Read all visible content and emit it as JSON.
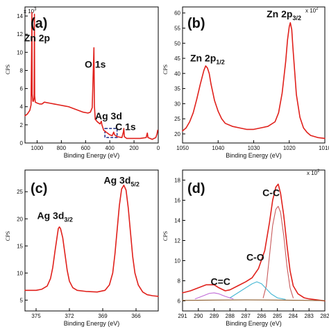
{
  "chart_data": [
    {
      "type": "line",
      "panel_label": "(a)",
      "xlabel": "Binding Energy (eV)",
      "ylabel": "CPS",
      "y_exponent": "x 10",
      "y_exponent_power": "3",
      "xlim": [
        1100,
        0
      ],
      "ylim": [
        0,
        15
      ],
      "xticks": [
        1000,
        800,
        600,
        400,
        200,
        0
      ],
      "yticks": [
        0,
        2,
        4,
        6,
        8,
        10,
        12,
        14
      ],
      "annotations": [
        {
          "text": "Zn 2p",
          "x": 1000,
          "y": 11.2
        },
        {
          "text": "O 1s",
          "x": 520,
          "y": 8.3
        },
        {
          "text": "Ag 3d",
          "x": 410,
          "y": 2.6
        },
        {
          "text": "C 1s",
          "x": 270,
          "y": 1.4
        }
      ],
      "highlight_box": {
        "x0": 440,
        "x1": 340,
        "y0": 0.6,
        "y1": 1.6
      },
      "series": [
        {
          "color": "#e0201b",
          "points": [
            [
              1100,
              3.0
            ],
            [
              1080,
              3.2
            ],
            [
              1060,
              3.6
            ],
            [
              1050,
              4.2
            ],
            [
              1045,
              10.8
            ],
            [
              1043,
              14.4
            ],
            [
              1041,
              5.4
            ],
            [
              1035,
              4.6
            ],
            [
              1030,
              4.6
            ],
            [
              1025,
              5.0
            ],
            [
              1022,
              14.2
            ],
            [
              1020,
              5.2
            ],
            [
              1015,
              4.5
            ],
            [
              1000,
              4.4
            ],
            [
              980,
              4.3
            ],
            [
              960,
              4.3
            ],
            [
              940,
              4.5
            ],
            [
              900,
              4.4
            ],
            [
              860,
              4.3
            ],
            [
              820,
              4.2
            ],
            [
              780,
              4.1
            ],
            [
              740,
              4.0
            ],
            [
              700,
              3.8
            ],
            [
              660,
              3.6
            ],
            [
              620,
              3.4
            ],
            [
              580,
              3.3
            ],
            [
              560,
              3.4
            ],
            [
              545,
              3.9
            ],
            [
              535,
              8.6
            ],
            [
              531,
              10.5
            ],
            [
              527,
              4.1
            ],
            [
              520,
              2.6
            ],
            [
              500,
              2.3
            ],
            [
              480,
              2.1
            ],
            [
              470,
              2.4
            ],
            [
              465,
              2.0
            ],
            [
              450,
              1.4
            ],
            [
              420,
              1.1
            ],
            [
              400,
              0.9
            ],
            [
              380,
              0.8
            ],
            [
              368,
              1.2
            ],
            [
              360,
              0.9
            ],
            [
              340,
              0.7
            ],
            [
              300,
              0.6
            ],
            [
              288,
              1.2
            ],
            [
              284,
              1.6
            ],
            [
              280,
              0.7
            ],
            [
              260,
              0.5
            ],
            [
              200,
              0.5
            ],
            [
              150,
              0.5
            ],
            [
              100,
              0.6
            ],
            [
              90,
              1.1
            ],
            [
              85,
              0.6
            ],
            [
              50,
              0.4
            ],
            [
              20,
              0.6
            ],
            [
              10,
              1.0
            ],
            [
              5,
              1.4
            ]
          ]
        }
      ]
    },
    {
      "type": "line",
      "panel_label": "(b)",
      "xlabel": "Binding Energy (eV)",
      "ylabel": "CPS",
      "y_exponent": "x 10",
      "y_exponent_power": "2",
      "xlim": [
        1050,
        1010
      ],
      "ylim": [
        17,
        62
      ],
      "xticks": [
        1050,
        1040,
        1030,
        1020,
        1010
      ],
      "yticks": [
        20,
        25,
        30,
        35,
        40,
        45,
        50,
        55,
        60
      ],
      "annotations": [
        {
          "text": "Zn 2p",
          "sub": "1/2",
          "x": 1043,
          "y": 44
        },
        {
          "text": "Zn 2p",
          "sub": "3/2",
          "x": 1021.5,
          "y": 58.5
        }
      ],
      "series": [
        {
          "color": "#e0201b",
          "points": [
            [
              1050,
              21.0
            ],
            [
              1049,
              22.0
            ],
            [
              1048,
              24.0
            ],
            [
              1047,
              27.0
            ],
            [
              1046,
              31.5
            ],
            [
              1045,
              36.5
            ],
            [
              1044,
              41.0
            ],
            [
              1043.5,
              42.5
            ],
            [
              1043,
              41.8
            ],
            [
              1042.5,
              40.0
            ],
            [
              1042,
              36.5
            ],
            [
              1041,
              31.0
            ],
            [
              1040,
              27.5
            ],
            [
              1039,
              25.0
            ],
            [
              1038,
              23.5
            ],
            [
              1036,
              22.5
            ],
            [
              1034,
              22.0
            ],
            [
              1032,
              21.5
            ],
            [
              1030,
              21.5
            ],
            [
              1028,
              22.0
            ],
            [
              1026,
              22.5
            ],
            [
              1024,
              24.0
            ],
            [
              1023,
              27.0
            ],
            [
              1022,
              33.5
            ],
            [
              1021,
              44.0
            ],
            [
              1020.5,
              51.0
            ],
            [
              1020,
              55.5
            ],
            [
              1019.7,
              56.8
            ],
            [
              1019.3,
              54.5
            ],
            [
              1019,
              49.0
            ],
            [
              1018.5,
              41.0
            ],
            [
              1018,
              33.0
            ],
            [
              1017,
              25.5
            ],
            [
              1016,
              22.0
            ],
            [
              1015,
              20.5
            ],
            [
              1014,
              19.5
            ],
            [
              1012,
              18.8
            ],
            [
              1010,
              18.5
            ]
          ]
        }
      ]
    },
    {
      "type": "line",
      "panel_label": "(c)",
      "xlabel": "Binding Energy (eV)",
      "ylabel": "CPS",
      "xlim": [
        376,
        364
      ],
      "ylim": [
        3,
        29
      ],
      "xticks": [
        375,
        372,
        369,
        366
      ],
      "yticks": [
        5,
        10,
        15,
        20,
        25
      ],
      "annotations": [
        {
          "text": "Ag 3d",
          "sub": "3/2",
          "x": 373.3,
          "y": 20
        },
        {
          "text": "Ag 3d",
          "sub": "5/2",
          "x": 367.3,
          "y": 26.5
        }
      ],
      "series": [
        {
          "color": "#e0201b",
          "points": [
            [
              376,
              6.8
            ],
            [
              375,
              6.8
            ],
            [
              374.5,
              7.0
            ],
            [
              374,
              7.6
            ],
            [
              373.7,
              9.0
            ],
            [
              373.5,
              11.0
            ],
            [
              373.3,
              14.0
            ],
            [
              373.1,
              16.8
            ],
            [
              373.0,
              18.2
            ],
            [
              372.9,
              18.5
            ],
            [
              372.8,
              18.2
            ],
            [
              372.6,
              16.5
            ],
            [
              372.4,
              13.5
            ],
            [
              372.2,
              10.5
            ],
            [
              372.0,
              8.5
            ],
            [
              371.7,
              7.3
            ],
            [
              371.3,
              6.8
            ],
            [
              370.5,
              6.6
            ],
            [
              369.5,
              6.5
            ],
            [
              368.8,
              6.8
            ],
            [
              368.4,
              7.8
            ],
            [
              368.1,
              10.0
            ],
            [
              367.9,
              13.5
            ],
            [
              367.7,
              18.0
            ],
            [
              367.5,
              22.5
            ],
            [
              367.3,
              25.5
            ],
            [
              367.1,
              26.2
            ],
            [
              366.9,
              25.3
            ],
            [
              366.7,
              22.0
            ],
            [
              366.5,
              17.5
            ],
            [
              366.3,
              13.0
            ],
            [
              366.1,
              10.0
            ],
            [
              365.8,
              7.8
            ],
            [
              365.4,
              6.5
            ],
            [
              365.0,
              6.0
            ],
            [
              364.5,
              5.8
            ],
            [
              364.0,
              5.7
            ]
          ]
        }
      ]
    },
    {
      "type": "line",
      "panel_label": "(d)",
      "xlabel": "Binding Energy (eV)",
      "ylabel": "CPS",
      "y_exponent": "x 10",
      "y_exponent_power": "2",
      "xlim": [
        291,
        282
      ],
      "ylim": [
        5,
        19
      ],
      "xticks": [
        291,
        290,
        289,
        288,
        287,
        286,
        285,
        284,
        283,
        282
      ],
      "yticks": [
        6,
        8,
        10,
        12,
        14,
        16,
        18
      ],
      "annotations": [
        {
          "text": "C=C",
          "x": 288.6,
          "y": 7.6
        },
        {
          "text": "C-O",
          "x": 286.4,
          "y": 10.0
        },
        {
          "text": "C-C",
          "x": 285.4,
          "y": 16.4
        }
      ],
      "series": [
        {
          "name": "",
          "color": "#e0201b",
          "points": [
            [
              291,
              6.8
            ],
            [
              290.5,
              7.0
            ],
            [
              290,
              7.3
            ],
            [
              289.5,
              7.6
            ],
            [
              289,
              7.6
            ],
            [
              288.7,
              7.3
            ],
            [
              288.3,
              7.0
            ],
            [
              288,
              7.1
            ],
            [
              287.5,
              7.5
            ],
            [
              287,
              7.9
            ],
            [
              286.6,
              8.3
            ],
            [
              286.2,
              9.2
            ],
            [
              285.8,
              11.0
            ],
            [
              285.5,
              13.8
            ],
            [
              285.3,
              16.0
            ],
            [
              285.1,
              17.3
            ],
            [
              284.95,
              17.6
            ],
            [
              284.8,
              16.7
            ],
            [
              284.6,
              14.5
            ],
            [
              284.4,
              11.6
            ],
            [
              284.2,
              9.0
            ],
            [
              284,
              7.5
            ],
            [
              283.7,
              6.7
            ],
            [
              283.3,
              6.3
            ],
            [
              283,
              6.2
            ],
            [
              282.5,
              6.1
            ],
            [
              282,
              6.0
            ]
          ]
        },
        {
          "name": "",
          "color": "#c8595a",
          "points": [
            [
              285.9,
              6.3
            ],
            [
              285.7,
              7.5
            ],
            [
              285.5,
              10.5
            ],
            [
              285.3,
              13.5
            ],
            [
              285.1,
              15.1
            ],
            [
              284.95,
              15.4
            ],
            [
              284.8,
              14.8
            ],
            [
              284.6,
              12.5
            ],
            [
              284.4,
              9.5
            ],
            [
              284.2,
              7.3
            ],
            [
              284.0,
              6.3
            ]
          ]
        },
        {
          "name": "",
          "color": "#45b7d4",
          "points": [
            [
              288,
              6.3
            ],
            [
              287.5,
              6.8
            ],
            [
              287,
              7.3
            ],
            [
              286.6,
              7.7
            ],
            [
              286.3,
              7.9
            ],
            [
              286.0,
              7.7
            ],
            [
              285.7,
              7.2
            ],
            [
              285.4,
              6.7
            ],
            [
              285,
              6.3
            ],
            [
              284.5,
              6.15
            ]
          ]
        },
        {
          "name": "",
          "color": "#c06ad8",
          "points": [
            [
              290.2,
              6.2
            ],
            [
              289.7,
              6.5
            ],
            [
              289.3,
              6.75
            ],
            [
              289.0,
              6.8
            ],
            [
              288.7,
              6.7
            ],
            [
              288.3,
              6.45
            ],
            [
              287.8,
              6.2
            ]
          ]
        },
        {
          "name": "",
          "color": "#8a5a2b",
          "points": [
            [
              291,
              6.05
            ],
            [
              289,
              6.08
            ],
            [
              287,
              6.1
            ],
            [
              285,
              6.08
            ],
            [
              283,
              6.05
            ],
            [
              282,
              6.03
            ]
          ]
        }
      ]
    }
  ]
}
